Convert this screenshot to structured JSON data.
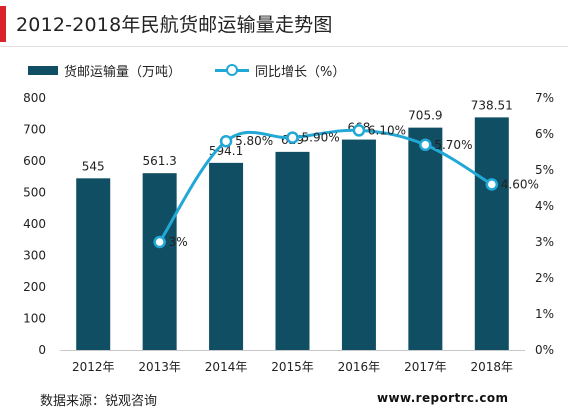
{
  "header": {
    "title": "2012-2018年民航货邮运输量走势图"
  },
  "legend": {
    "bar_label": "货邮运输量（万吨）",
    "line_label": "同比增长（%）"
  },
  "footer": {
    "source": "数据来源：锐观咨询",
    "site": "www.reportrc.com"
  },
  "chart_data": {
    "type": "bar",
    "categories": [
      "2012年",
      "2013年",
      "2014年",
      "2015年",
      "2016年",
      "2017年",
      "2018年"
    ],
    "series": [
      {
        "name": "货邮运输量（万吨）",
        "type": "bar",
        "axis": "left",
        "values": [
          545,
          561.3,
          594.1,
          629,
          668,
          705.9,
          738.51
        ],
        "labels": [
          "545",
          "561.3",
          "594.1",
          "629",
          "668",
          "705.9",
          "738.51"
        ],
        "color": "#0f4e63"
      },
      {
        "name": "同比增长（%）",
        "type": "line",
        "axis": "right",
        "values": [
          null,
          3,
          5.8,
          5.9,
          6.1,
          5.7,
          4.6
        ],
        "labels": [
          "",
          "3%",
          "5.80%",
          "5.90%",
          "6.10%",
          "5.70%",
          "4.60%"
        ],
        "color": "#22a8d6"
      }
    ],
    "y_left": {
      "min": 0,
      "max": 800,
      "ticks": [
        "0",
        "100",
        "200",
        "300",
        "400",
        "500",
        "600",
        "700",
        "800"
      ]
    },
    "y_right": {
      "min": 0,
      "max": 7,
      "ticks": [
        "0%",
        "1%",
        "2%",
        "3%",
        "4%",
        "5%",
        "6%",
        "7%"
      ]
    },
    "grid": false,
    "legend_position": "top-left"
  }
}
